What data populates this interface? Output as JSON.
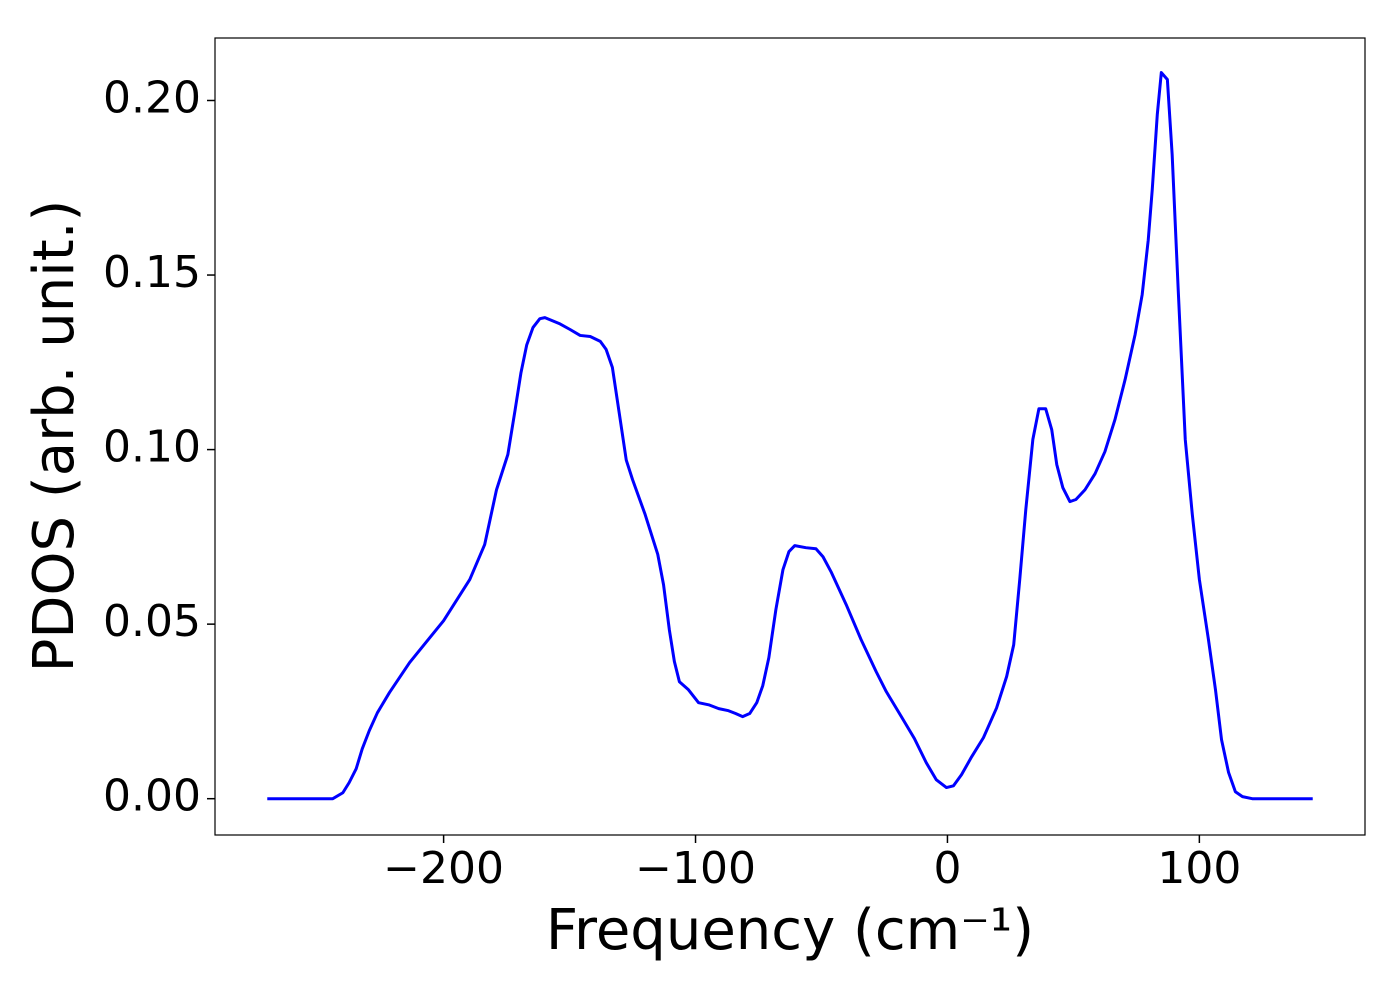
{
  "chart_data": {
    "type": "line",
    "x_label": "Frequency (cm⁻¹)",
    "y_label": "PDOS (arb. unit.)",
    "xlim": [
      -290.75,
      165.75
    ],
    "ylim": [
      -0.0104,
      0.2179
    ],
    "xticks": [
      {
        "value": -200,
        "label": "−200"
      },
      {
        "value": -100,
        "label": "−100"
      },
      {
        "value": 0,
        "label": "0"
      },
      {
        "value": 100,
        "label": "100"
      }
    ],
    "yticks": [
      {
        "value": 0,
        "label": "0.00"
      },
      {
        "value": 0.05,
        "label": "0.05"
      },
      {
        "value": 0.1,
        "label": "0.10"
      },
      {
        "value": 0.15,
        "label": "0.15"
      },
      {
        "value": 0.2,
        "label": "0.20"
      }
    ],
    "grid": false,
    "x": [
      -270,
      -244,
      -240,
      -237.5,
      -234.7,
      -232.3,
      -229.5,
      -226.3,
      -221.5,
      -213.5,
      -200,
      -189.6,
      -183.7,
      -179,
      -174.5,
      -171.7,
      -169.3,
      -167,
      -164.5,
      -161.8,
      -159.8,
      -153.8,
      -149.8,
      -145.8,
      -141.8,
      -137.8,
      -135.5,
      -133,
      -129.9,
      -127.5,
      -125,
      -120,
      -115,
      -112.7,
      -110.4,
      -108.4,
      -106.4,
      -102.8,
      -98.8,
      -94.8,
      -90.8,
      -86.9,
      -84.1,
      -81.3,
      -78.5,
      -75.7,
      -73.3,
      -70.9,
      -68.1,
      -65.3,
      -62.9,
      -60.6,
      -56.2,
      -52.2,
      -49.4,
      -46.2,
      -40.2,
      -34.3,
      -28.3,
      -24.3,
      -18.3,
      -13.1,
      -8.4,
      -4.4,
      -0.4,
      2.4,
      5.6,
      9.6,
      14.3,
      19.5,
      23.5,
      26.3,
      28.7,
      31.1,
      33.9,
      36.3,
      39,
      41.4,
      43.4,
      45.8,
      48.6,
      51,
      54.6,
      58.6,
      62.5,
      66.5,
      70.5,
      74.5,
      77.3,
      79.7,
      81.3,
      83.3,
      84.9,
      87.3,
      89.2,
      91.6,
      94.4,
      97.2,
      100,
      103.6,
      106.4,
      108.8,
      111.6,
      114.3,
      117.1,
      121,
      145
    ],
    "series": [
      {
        "color": "#0000ff",
        "values": [
          0,
          0,
          0.0017,
          0.0046,
          0.0086,
          0.0143,
          0.0195,
          0.0246,
          0.0304,
          0.039,
          0.051,
          0.0628,
          0.0728,
          0.0885,
          0.0986,
          0.111,
          0.122,
          0.13,
          0.135,
          0.1375,
          0.1378,
          0.136,
          0.1344,
          0.1327,
          0.1324,
          0.131,
          0.1287,
          0.1235,
          0.1086,
          0.097,
          0.0914,
          0.0814,
          0.07,
          0.0613,
          0.0484,
          0.0393,
          0.0335,
          0.0312,
          0.0275,
          0.0269,
          0.0258,
          0.0252,
          0.0244,
          0.0235,
          0.0244,
          0.0275,
          0.0324,
          0.0404,
          0.0542,
          0.0656,
          0.0708,
          0.0725,
          0.0719,
          0.0716,
          0.0693,
          0.065,
          0.0556,
          0.0456,
          0.0364,
          0.0307,
          0.0235,
          0.0172,
          0.0103,
          0.0054,
          0.0032,
          0.0037,
          0.0069,
          0.012,
          0.0175,
          0.026,
          0.035,
          0.0441,
          0.0628,
          0.0828,
          0.1029,
          0.1117,
          0.1117,
          0.1057,
          0.0957,
          0.0891,
          0.0851,
          0.0857,
          0.0885,
          0.0931,
          0.0994,
          0.1086,
          0.12,
          0.133,
          0.1444,
          0.16,
          0.1745,
          0.196,
          0.208,
          0.206,
          0.1845,
          0.1458,
          0.1029,
          0.0814,
          0.0628,
          0.0456,
          0.0312,
          0.0169,
          0.0075,
          0.002,
          0.0006,
          0,
          0
        ]
      }
    ]
  }
}
